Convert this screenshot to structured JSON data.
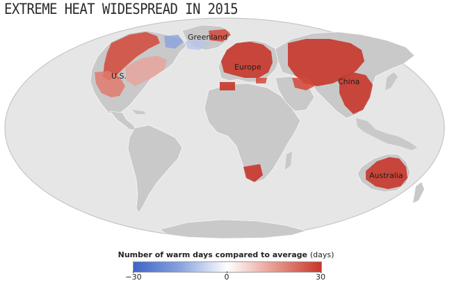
{
  "title": "EXTREME HEAT WIDESPREAD IN 2015",
  "regions": {
    "us": "U.S.",
    "greenland": "Greenland",
    "europe": "Europe",
    "china": "China",
    "australia": "Australia"
  },
  "legend": {
    "title": "Number of warm days compared to average",
    "unit": "(days)",
    "min_label": "−30",
    "mid_label": "0",
    "max_label": "30",
    "range": [
      -30,
      30
    ],
    "colors": {
      "low": "#3d64c8",
      "mid": "#ffffff",
      "high": "#c7362a"
    }
  },
  "colors": {
    "ocean": "#e6e6e6",
    "land": "#c9c9c9",
    "border": "#ffffff",
    "warm": "#d2483a",
    "cool": "#6b82d1"
  }
}
